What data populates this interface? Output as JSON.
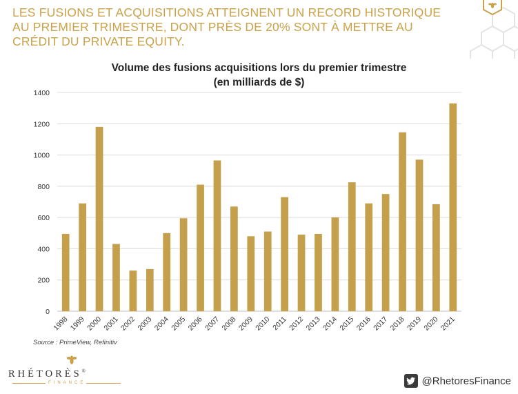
{
  "header": {
    "headline": "LES FUSIONS ET ACQUISITIONS ATTEIGNENT UN RECORD HISTORIQUE AU PREMIER TRIMESTRE, DONT PRÈS DE 20% SONT À METTRE AU CRÉDIT DU PRIVATE EQUITY."
  },
  "chart_data": {
    "type": "bar",
    "title": "Volume des fusions acquisitions lors du premier trimestre",
    "subtitle": "(en milliards de $)",
    "xlabel": "",
    "ylabel": "",
    "categories": [
      "1998",
      "1999",
      "2000",
      "2001",
      "2002",
      "2003",
      "2004",
      "2005",
      "2006",
      "2007",
      "2008",
      "2009",
      "2010",
      "2011",
      "2012",
      "2013",
      "2014",
      "2015",
      "2016",
      "2017",
      "2018",
      "2019",
      "2020",
      "2021"
    ],
    "values": [
      495,
      690,
      1180,
      430,
      260,
      270,
      500,
      595,
      810,
      965,
      670,
      480,
      510,
      730,
      490,
      495,
      600,
      825,
      690,
      750,
      1145,
      970,
      685,
      1330
    ],
    "ylim": [
      0,
      1400
    ],
    "yticks": [
      0,
      200,
      400,
      600,
      800,
      1000,
      1200,
      1400
    ],
    "grid": true,
    "bar_color": "#c4a04d"
  },
  "footer": {
    "source": "Source : PrimeView, Refinitiv",
    "brand_name": "RHÉTORÈS",
    "brand_sub": "FINANCE",
    "registered": "®",
    "twitter_handle": "@RhetoresFinance",
    "icons": [
      "bee-icon",
      "twitter-icon"
    ]
  }
}
